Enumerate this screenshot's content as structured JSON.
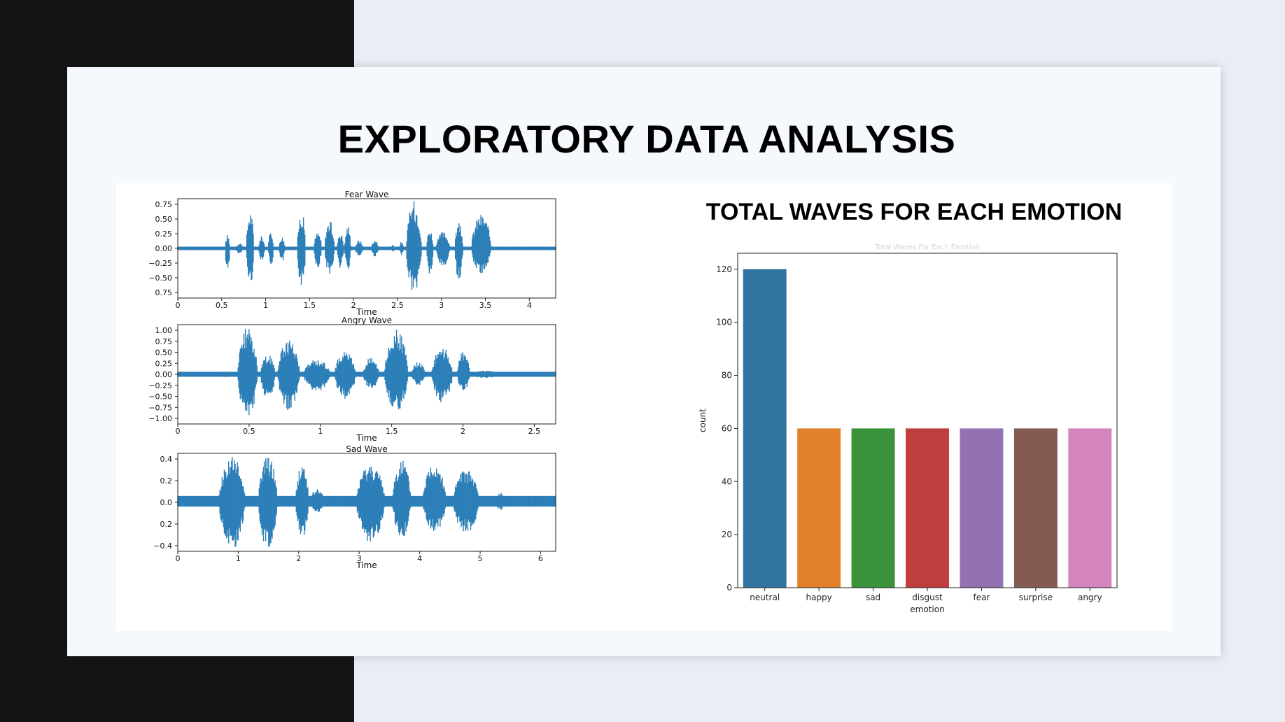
{
  "slide": {
    "title": "EXPLORATORY DATA ANALYSIS",
    "bar_heading": "TOTAL WAVES FOR EACH EMOTION"
  },
  "chart_data": [
    {
      "type": "line",
      "title": "Fear Wave",
      "xlabel": "Time",
      "ylabel": "",
      "xlim": [
        0,
        4.3
      ],
      "ylim": [
        -0.88,
        0.88
      ],
      "xticks": [
        "0",
        "0.5",
        "1",
        "1.5",
        "2",
        "2.5",
        "3",
        "3.5",
        "4"
      ],
      "yticks": [
        "0.75",
        "0.50",
        "0.25",
        "0.00",
        "−0.25",
        "−0.50",
        "0.75"
      ],
      "noise_amplitude": 0.03,
      "bursts": [
        {
          "start": 0.54,
          "end": 0.6,
          "amp_pos": 0.25,
          "amp_neg": -0.45
        },
        {
          "start": 0.66,
          "end": 0.76,
          "amp_pos": 0.1,
          "amp_neg": -0.1
        },
        {
          "start": 0.78,
          "end": 0.88,
          "amp_pos": 0.68,
          "amp_neg": -0.68
        },
        {
          "start": 0.92,
          "end": 1.0,
          "amp_pos": 0.22,
          "amp_neg": -0.22
        },
        {
          "start": 1.03,
          "end": 1.1,
          "amp_pos": 0.32,
          "amp_neg": -0.3
        },
        {
          "start": 1.15,
          "end": 1.23,
          "amp_pos": 0.22,
          "amp_neg": -0.25
        },
        {
          "start": 1.36,
          "end": 1.47,
          "amp_pos": 0.67,
          "amp_neg": -0.7
        },
        {
          "start": 1.55,
          "end": 1.65,
          "amp_pos": 0.3,
          "amp_neg": -0.35
        },
        {
          "start": 1.67,
          "end": 1.8,
          "amp_pos": 0.5,
          "amp_neg": -0.45
        },
        {
          "start": 1.81,
          "end": 1.9,
          "amp_pos": 0.3,
          "amp_neg": -0.35
        },
        {
          "start": 1.9,
          "end": 1.98,
          "amp_pos": 0.42,
          "amp_neg": -0.4
        },
        {
          "start": 2.02,
          "end": 2.12,
          "amp_pos": 0.15,
          "amp_neg": -0.15
        },
        {
          "start": 2.2,
          "end": 2.3,
          "amp_pos": 0.15,
          "amp_neg": -0.15
        },
        {
          "start": 2.43,
          "end": 2.47,
          "amp_pos": 0.08,
          "amp_neg": -0.08
        },
        {
          "start": 2.52,
          "end": 2.58,
          "amp_pos": 0.12,
          "amp_neg": -0.12
        },
        {
          "start": 2.6,
          "end": 2.8,
          "amp_pos": 0.85,
          "amp_neg": -0.82
        },
        {
          "start": 2.83,
          "end": 2.92,
          "amp_pos": 0.35,
          "amp_neg": -0.5
        },
        {
          "start": 2.94,
          "end": 3.12,
          "amp_pos": 0.3,
          "amp_neg": -0.35
        },
        {
          "start": 3.15,
          "end": 3.26,
          "amp_pos": 0.45,
          "amp_neg": -0.55
        },
        {
          "start": 3.34,
          "end": 3.6,
          "amp_pos": 0.62,
          "amp_neg": -0.45
        }
      ]
    },
    {
      "type": "line",
      "title": "Angry Wave",
      "xlabel": "Time",
      "ylabel": "",
      "xlim": [
        0,
        2.65
      ],
      "ylim": [
        -1.0,
        1.0
      ],
      "xticks": [
        "0",
        "0.5",
        "1",
        "1.5",
        "2",
        "2.5"
      ],
      "yticks": [
        "1.00",
        "0.75",
        "0.50",
        "0.25",
        "0.00",
        "−0.25",
        "−0.50",
        "−0.75",
        "−1.00"
      ],
      "noise_amplitude": 0.05,
      "bursts": [
        {
          "start": 0.27,
          "end": 0.42,
          "amp_pos": 0.06,
          "amp_neg": -0.06
        },
        {
          "start": 0.42,
          "end": 0.58,
          "amp_pos": 0.95,
          "amp_neg": -0.9
        },
        {
          "start": 0.58,
          "end": 0.7,
          "amp_pos": 0.4,
          "amp_neg": -0.5
        },
        {
          "start": 0.7,
          "end": 0.88,
          "amp_pos": 0.7,
          "amp_neg": -0.75
        },
        {
          "start": 0.88,
          "end": 1.1,
          "amp_pos": 0.3,
          "amp_neg": -0.35
        },
        {
          "start": 1.1,
          "end": 1.27,
          "amp_pos": 0.48,
          "amp_neg": -0.5
        },
        {
          "start": 1.3,
          "end": 1.43,
          "amp_pos": 0.35,
          "amp_neg": -0.3
        },
        {
          "start": 1.45,
          "end": 1.64,
          "amp_pos": 0.9,
          "amp_neg": -0.75
        },
        {
          "start": 1.64,
          "end": 1.75,
          "amp_pos": 0.25,
          "amp_neg": -0.22
        },
        {
          "start": 1.78,
          "end": 1.95,
          "amp_pos": 0.55,
          "amp_neg": -0.57
        },
        {
          "start": 1.96,
          "end": 2.06,
          "amp_pos": 0.48,
          "amp_neg": -0.35
        },
        {
          "start": 2.06,
          "end": 2.28,
          "amp_pos": 0.08,
          "amp_neg": -0.08
        }
      ]
    },
    {
      "type": "line",
      "title": "Sad Wave",
      "xlabel": "Time",
      "ylabel": "",
      "xlim": [
        0,
        6.25
      ],
      "ylim": [
        -0.47,
        0.45
      ],
      "xticks": [
        "0",
        "1",
        "2",
        "3",
        "4",
        "5",
        "6"
      ],
      "yticks": [
        "0.4",
        "0.2",
        "0.0",
        "0.2",
        "−0.4"
      ],
      "noise_amplitude": 0.05,
      "bursts": [
        {
          "start": 0.68,
          "end": 1.18,
          "amp_pos": 0.43,
          "amp_neg": -0.45
        },
        {
          "start": 1.33,
          "end": 1.7,
          "amp_pos": 0.43,
          "amp_neg": -0.45
        },
        {
          "start": 1.95,
          "end": 2.2,
          "amp_pos": 0.36,
          "amp_neg": -0.35
        },
        {
          "start": 2.2,
          "end": 2.45,
          "amp_pos": 0.12,
          "amp_neg": -0.12
        },
        {
          "start": 2.95,
          "end": 3.5,
          "amp_pos": 0.36,
          "amp_neg": -0.4
        },
        {
          "start": 3.55,
          "end": 3.9,
          "amp_pos": 0.4,
          "amp_neg": -0.35
        },
        {
          "start": 4.05,
          "end": 4.5,
          "amp_pos": 0.38,
          "amp_neg": -0.3
        },
        {
          "start": 4.55,
          "end": 5.05,
          "amp_pos": 0.3,
          "amp_neg": -0.3
        },
        {
          "start": 5.25,
          "end": 5.45,
          "amp_pos": 0.08,
          "amp_neg": -0.08
        }
      ]
    },
    {
      "type": "bar",
      "title": "Total Waves For Each Emotion",
      "xlabel": "emotion",
      "ylabel": "count",
      "ylim": [
        0,
        126
      ],
      "yticks": [
        0,
        20,
        40,
        60,
        80,
        100,
        120
      ],
      "categories": [
        "neutral",
        "happy",
        "sad",
        "disgust",
        "fear",
        "surprise",
        "angry"
      ],
      "values": [
        120,
        60,
        60,
        60,
        60,
        60,
        60
      ],
      "colors": [
        "#3274a1",
        "#e1812c",
        "#3a923a",
        "#c03d3e",
        "#9372b2",
        "#845b53",
        "#d684bd"
      ]
    }
  ]
}
